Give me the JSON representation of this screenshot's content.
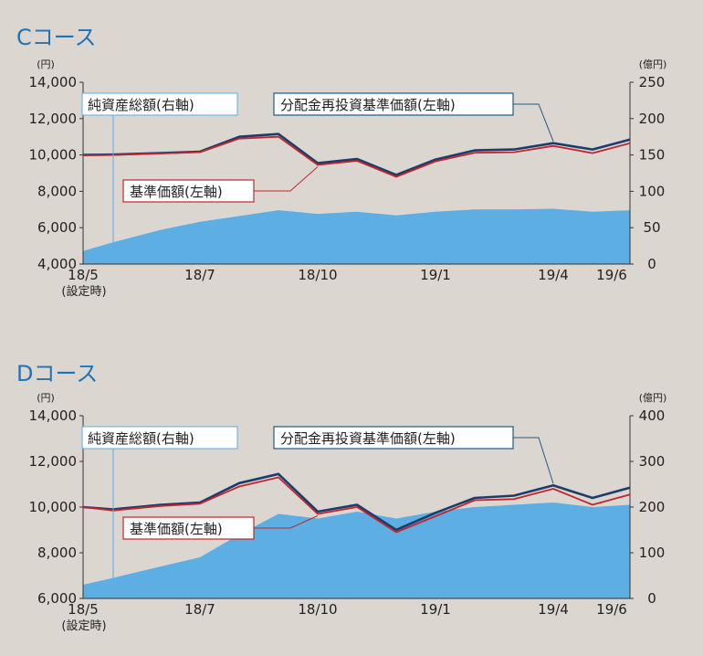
{
  "charts": [
    {
      "title": "Cコース",
      "left_unit": "(円)",
      "right_unit": "(億円)",
      "x_ticks": [
        {
          "label": "18/5",
          "sub": "(設定時)",
          "idx": 0
        },
        {
          "label": "18/7",
          "idx": 4
        },
        {
          "label": "18/10",
          "idx": 7
        },
        {
          "label": "19/1",
          "idx": 10
        },
        {
          "label": "19/4",
          "idx": 14
        },
        {
          "label": "19/6",
          "idx": 16
        }
      ],
      "annotations": {
        "nav_right": "純資産総額(右軸)",
        "reinvest_left": "分配金再投資基準価額(左軸)",
        "base_left": "基準価額(左軸)"
      },
      "chart_data": {
        "type": "line",
        "ylim_left": [
          4000,
          14000
        ],
        "ylim_right": [
          0,
          250
        ],
        "y_ticks_left": [
          "4,000",
          "6,000",
          "8,000",
          "10,000",
          "12,000",
          "14,000"
        ],
        "y_ticks_right": [
          "0",
          "50",
          "100",
          "150",
          "200",
          "250"
        ],
        "series": [
          {
            "name": "分配金再投資基準価額(左軸)",
            "axis": "left",
            "color": "#1c3d6b",
            "values": [
              10000,
              10020,
              10100,
              10180,
              11000,
              11150,
              9550,
              9780,
              8900,
              9750,
              10250,
              10300,
              10650,
              10300,
              10850
            ]
          },
          {
            "name": "基準価額(左軸)",
            "axis": "left",
            "color": "#c1272d",
            "values": [
              9980,
              10000,
              10080,
              10150,
              10900,
              11000,
              9450,
              9680,
              8800,
              9650,
              10120,
              10150,
              10500,
              10100,
              10650
            ]
          },
          {
            "name": "純資産総額(右軸)",
            "axis": "right",
            "color": "#5daee3",
            "kind": "area",
            "values": [
              18,
              30,
              47,
              58,
              66,
              74,
              69,
              72,
              67,
              72,
              75,
              75,
              76,
              72,
              74
            ]
          }
        ]
      }
    },
    {
      "title": "Dコース",
      "left_unit": "(円)",
      "right_unit": "(億円)",
      "x_ticks": [
        {
          "label": "18/5",
          "sub": "(設定時)",
          "idx": 0
        },
        {
          "label": "18/7",
          "idx": 4
        },
        {
          "label": "18/10",
          "idx": 7
        },
        {
          "label": "19/1",
          "idx": 10
        },
        {
          "label": "19/4",
          "idx": 14
        },
        {
          "label": "19/6",
          "idx": 16
        }
      ],
      "annotations": {
        "nav_right": "純資産総額(右軸)",
        "reinvest_left": "分配金再投資基準価額(左軸)",
        "base_left": "基準価額(左軸)"
      },
      "chart_data": {
        "type": "line",
        "ylim_left": [
          6000,
          14000
        ],
        "ylim_right": [
          0,
          400
        ],
        "y_ticks_left": [
          "6,000",
          "8,000",
          "10,000",
          "12,000",
          "14,000"
        ],
        "y_ticks_right": [
          "0",
          "100",
          "200",
          "300",
          "400"
        ],
        "series": [
          {
            "name": "分配金再投資基準価額(左軸)",
            "axis": "left",
            "color": "#1c3d6b",
            "values": [
              10000,
              9900,
              10100,
              10200,
              11050,
              11450,
              9800,
              10100,
              9000,
              9750,
              10400,
              10500,
              10950,
              10400,
              10850
            ]
          },
          {
            "name": "基準価額(左軸)",
            "axis": "left",
            "color": "#c1272d",
            "values": [
              10000,
              9850,
              10050,
              10150,
              10900,
              11300,
              9700,
              10000,
              8900,
              9600,
              10300,
              10350,
              10800,
              10100,
              10550
            ]
          },
          {
            "name": "純資産総額(右軸)",
            "axis": "right",
            "color": "#5daee3",
            "kind": "area",
            "values": [
              30,
              45,
              70,
              90,
              140,
              185,
              175,
              190,
              175,
              190,
              200,
              205,
              210,
              200,
              205
            ]
          }
        ]
      }
    }
  ]
}
